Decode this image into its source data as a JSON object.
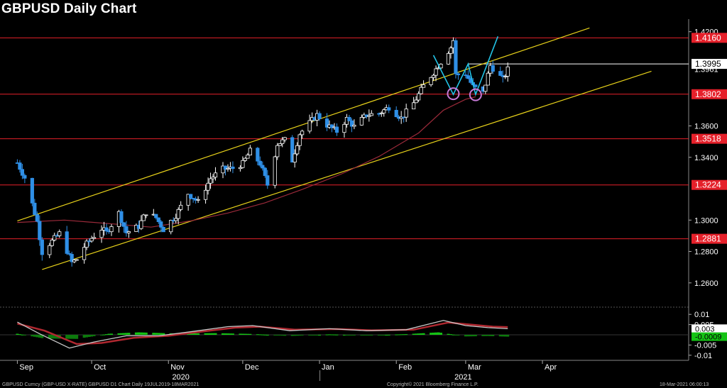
{
  "title": "GBPUSD Daily Chart",
  "colors": {
    "background": "#000000",
    "candle_up": "#ffffff",
    "candle_down": "#2f8fe6",
    "channel": "#e8d21a",
    "horizontal_level": "#e5202a",
    "moving_average": "#9b2a3a",
    "pattern_line": "#22c3e6",
    "circle": "#c77ad8",
    "histogram_pos": "#14c314",
    "histogram_neg": "#0d7a0d",
    "osc_line_1": "#c8c8c8",
    "osc_line_2": "#b02830",
    "axis_text": "#ffffff"
  },
  "chart_data": {
    "type": "candlestick",
    "title": "GBPUSD Daily Chart",
    "price_axis": {
      "ylim": [
        1.245,
        1.428
      ],
      "ticks": [
        "1.4200",
        "1.3600",
        "1.3400",
        "1.3000",
        "1.2800",
        "1.2600"
      ],
      "tick_values": [
        1.42,
        1.36,
        1.34,
        1.3,
        1.28,
        1.26
      ]
    },
    "price_labels": [
      {
        "text": "1.4160",
        "value": 1.4161,
        "style": "red"
      },
      {
        "text": "1.3995",
        "value": 1.3995,
        "style": "white"
      },
      {
        "text": "1.3961",
        "value": 1.3961,
        "style": "plain"
      },
      {
        "text": "1.3802",
        "value": 1.3802,
        "style": "red"
      },
      {
        "text": "1.3518",
        "value": 1.3518,
        "style": "red"
      },
      {
        "text": "1.3224",
        "value": 1.3224,
        "style": "red"
      },
      {
        "text": "1.2881",
        "value": 1.2881,
        "style": "red"
      }
    ],
    "horizontal_levels": [
      1.4161,
      1.3802,
      1.3518,
      1.3224,
      1.2881
    ],
    "resistance_line_1.3995": {
      "start_date": "2021-03-02",
      "value": 1.3995
    },
    "channel": {
      "upper": [
        [
          "2020-09-01",
          1.2995
        ],
        [
          "2021-04-20",
          1.4224
        ]
      ],
      "lower": [
        [
          "2020-09-11",
          1.2685
        ],
        [
          "2021-05-15",
          1.3948
        ]
      ]
    },
    "pattern_lines": [
      [
        [
          "2021-02-16",
          1.405
        ],
        [
          "2021-02-24",
          1.38
        ],
        [
          "2021-03-02",
          1.3995
        ],
        [
          "2021-03-05",
          1.38
        ],
        [
          "2021-03-14",
          1.417
        ]
      ]
    ],
    "circles": [
      {
        "date": "2021-02-24",
        "value": 1.3805
      },
      {
        "date": "2021-03-05",
        "value": 1.3798
      }
    ],
    "moving_average_points": [
      [
        "2020-09-01",
        1.2985
      ],
      [
        "2020-09-20",
        1.3
      ],
      [
        "2020-10-10",
        1.2975
      ],
      [
        "2020-10-25",
        1.2955
      ],
      [
        "2020-11-10",
        1.2995
      ],
      [
        "2020-11-25",
        1.3045
      ],
      [
        "2020-12-10",
        1.311
      ],
      [
        "2020-12-25",
        1.3195
      ],
      [
        "2021-01-10",
        1.3295
      ],
      [
        "2021-01-25",
        1.3405
      ],
      [
        "2021-02-10",
        1.3555
      ],
      [
        "2021-02-20",
        1.37
      ],
      [
        "2021-03-01",
        1.377
      ],
      [
        "2021-03-05",
        1.3785
      ]
    ],
    "x_axis": {
      "ticks": [
        {
          "label": "Sep",
          "date": "2020-09-01"
        },
        {
          "label": "Oct",
          "date": "2020-10-01"
        },
        {
          "label": "Nov",
          "date": "2020-11-01"
        },
        {
          "label": "Dec",
          "date": "2020-12-01"
        },
        {
          "label": "Jan",
          "date": "2021-01-01"
        },
        {
          "label": "Feb",
          "date": "2021-02-01"
        },
        {
          "label": "Mar",
          "date": "2021-03-01"
        },
        {
          "label": "Apr",
          "date": "2021-04-01"
        }
      ],
      "year_labels": [
        {
          "label": "2020",
          "date": "2020-11-06"
        },
        {
          "label": "2021",
          "date": "2021-02-28"
        }
      ]
    },
    "close_points": [
      [
        "2020-09-01",
        1.3365
      ],
      [
        "2020-09-04",
        1.327
      ],
      [
        "2020-09-09",
        1.299
      ],
      [
        "2020-09-11",
        1.2795
      ],
      [
        "2020-09-14",
        1.285
      ],
      [
        "2020-09-18",
        1.2915
      ],
      [
        "2020-09-23",
        1.273
      ],
      [
        "2020-09-25",
        1.275
      ],
      [
        "2020-09-28",
        1.283
      ],
      [
        "2020-10-01",
        1.2885
      ],
      [
        "2020-10-05",
        1.2945
      ],
      [
        "2020-10-07",
        1.292
      ],
      [
        "2020-10-12",
        1.3045
      ],
      [
        "2020-10-15",
        1.292
      ],
      [
        "2020-10-20",
        1.296
      ],
      [
        "2020-10-23",
        1.305
      ],
      [
        "2020-10-27",
        1.3015
      ],
      [
        "2020-10-30",
        1.294
      ],
      [
        "2020-11-04",
        1.303
      ],
      [
        "2020-11-09",
        1.317
      ],
      [
        "2020-11-13",
        1.3115
      ],
      [
        "2020-11-18",
        1.3265
      ],
      [
        "2020-11-23",
        1.3325
      ],
      [
        "2020-11-27",
        1.333
      ],
      [
        "2020-12-01",
        1.336
      ],
      [
        "2020-12-04",
        1.344
      ],
      [
        "2020-12-08",
        1.336
      ],
      [
        "2020-12-11",
        1.3225
      ],
      [
        "2020-12-15",
        1.3485
      ],
      [
        "2020-12-18",
        1.351
      ],
      [
        "2020-12-21",
        1.338
      ],
      [
        "2020-12-24",
        1.355
      ],
      [
        "2020-12-31",
        1.367
      ],
      [
        "2021-01-04",
        1.3605
      ],
      [
        "2021-01-08",
        1.3565
      ],
      [
        "2021-01-12",
        1.3645
      ],
      [
        "2021-01-15",
        1.3595
      ],
      [
        "2021-01-20",
        1.367
      ],
      [
        "2021-01-25",
        1.368
      ],
      [
        "2021-01-29",
        1.372
      ],
      [
        "2021-02-03",
        1.365
      ],
      [
        "2021-02-08",
        1.3745
      ],
      [
        "2021-02-12",
        1.3855
      ],
      [
        "2021-02-16",
        1.394
      ],
      [
        "2021-02-19",
        1.4008
      ],
      [
        "2021-02-23",
        1.41
      ],
      [
        "2021-02-24",
        1.4145
      ],
      [
        "2021-02-25",
        1.3925
      ],
      [
        "2021-03-01",
        1.393
      ],
      [
        "2021-03-04",
        1.385
      ],
      [
        "2021-03-08",
        1.381
      ],
      [
        "2021-03-11",
        1.3985
      ],
      [
        "2021-03-16",
        1.3895
      ],
      [
        "2021-03-18",
        1.396
      ]
    ],
    "oscillator": {
      "axis_ticks": [
        "0.01",
        "0.005",
        "-0.005",
        "-0.01"
      ],
      "tick_values": [
        0.01,
        0.005,
        -0.005,
        -0.01
      ],
      "ylim": [
        -0.0125,
        0.0125
      ],
      "labels": [
        {
          "text": "0.003",
          "value": 0.003,
          "style": "white"
        },
        {
          "text": "-0.0009",
          "value": -0.0009,
          "style": "green"
        }
      ],
      "line1_points": [
        [
          "2020-09-01",
          0.0062
        ],
        [
          "2020-09-10",
          0.0005
        ],
        [
          "2020-09-22",
          -0.0065
        ],
        [
          "2020-10-02",
          -0.0035
        ],
        [
          "2020-10-15",
          -0.0005
        ],
        [
          "2020-10-28",
          -0.0005
        ],
        [
          "2020-11-10",
          0.0015
        ],
        [
          "2020-11-25",
          0.004
        ],
        [
          "2020-12-05",
          0.0045
        ],
        [
          "2020-12-20",
          0.002
        ],
        [
          "2021-01-05",
          0.003
        ],
        [
          "2021-01-20",
          0.002
        ],
        [
          "2021-02-05",
          0.0025
        ],
        [
          "2021-02-20",
          0.007
        ],
        [
          "2021-03-01",
          0.0045
        ],
        [
          "2021-03-10",
          0.0035
        ],
        [
          "2021-03-18",
          0.003
        ]
      ],
      "line2_points": [
        [
          "2020-09-01",
          0.0055
        ],
        [
          "2020-09-12",
          0.002
        ],
        [
          "2020-09-25",
          -0.0045
        ],
        [
          "2020-10-05",
          -0.004
        ],
        [
          "2020-10-18",
          -0.0015
        ],
        [
          "2020-11-01",
          -0.0005
        ],
        [
          "2020-11-12",
          0.0012
        ],
        [
          "2020-11-28",
          0.0035
        ],
        [
          "2020-12-08",
          0.004
        ],
        [
          "2020-12-22",
          0.0025
        ],
        [
          "2021-01-08",
          0.0028
        ],
        [
          "2021-01-22",
          0.0022
        ],
        [
          "2021-02-08",
          0.0025
        ],
        [
          "2021-02-22",
          0.006
        ],
        [
          "2021-03-03",
          0.005
        ],
        [
          "2021-03-12",
          0.004
        ],
        [
          "2021-03-18",
          0.0038
        ]
      ],
      "histogram_points": [
        [
          "2020-09-01",
          0.0005
        ],
        [
          "2020-09-12",
          -0.0018
        ],
        [
          "2020-09-25",
          -0.002
        ],
        [
          "2020-10-08",
          0.0005
        ],
        [
          "2020-10-20",
          0.0012
        ],
        [
          "2020-11-05",
          0.0006
        ],
        [
          "2020-11-20",
          0.0008
        ],
        [
          "2020-12-05",
          0.0004
        ],
        [
          "2020-12-20",
          -0.0006
        ],
        [
          "2021-01-05",
          0.0002
        ],
        [
          "2021-01-20",
          -0.0003
        ],
        [
          "2021-02-05",
          0.0003
        ],
        [
          "2021-02-18",
          0.0012
        ],
        [
          "2021-03-01",
          -0.0008
        ],
        [
          "2021-03-10",
          -0.0006
        ],
        [
          "2021-03-18",
          -0.0009
        ]
      ]
    }
  },
  "footer": {
    "left": "GBPUSD Curncy (GBP-USD X-RATE) GBPUSD D1 Chart Daily 19JUL2019-18MAR2021",
    "center": "Copyright© 2021 Bloomberg Finance L.P.",
    "right": "18-Mar-2021 06:00:13"
  }
}
